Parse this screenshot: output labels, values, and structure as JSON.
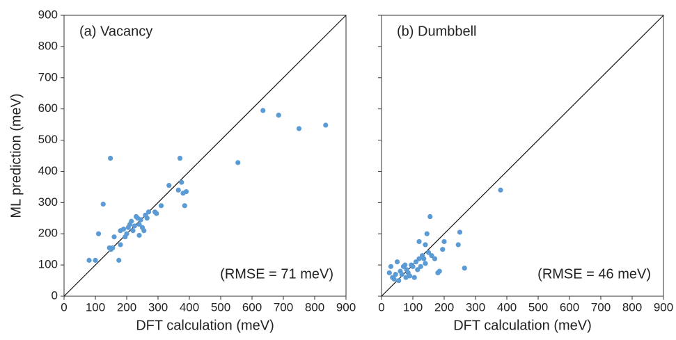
{
  "chart_data": [
    {
      "type": "scatter",
      "ylabel": "ML prediction (meV)",
      "xlabel": "DFT calculation (meV)",
      "annotations": [
        "(a) Vacancy",
        "(RMSE = 71 meV)"
      ],
      "color": "#5b9bd5",
      "xlim": [
        0,
        900
      ],
      "ylim": [
        0,
        900
      ],
      "xticks": [
        0,
        100,
        200,
        300,
        400,
        500,
        600,
        700,
        800,
        900
      ],
      "yticks": [
        0,
        100,
        200,
        300,
        400,
        500,
        600,
        700,
        800,
        900
      ],
      "x": [
        80,
        100,
        110,
        125,
        145,
        150,
        148,
        155,
        160,
        175,
        180,
        180,
        190,
        195,
        200,
        205,
        210,
        215,
        220,
        225,
        230,
        235,
        240,
        240,
        245,
        250,
        255,
        260,
        265,
        270,
        290,
        295,
        310,
        335,
        365,
        370,
        375,
        380,
        390,
        385,
        555,
        635,
        685,
        750,
        835
      ],
      "y": [
        115,
        115,
        200,
        295,
        155,
        150,
        442,
        155,
        190,
        115,
        165,
        210,
        215,
        190,
        200,
        220,
        230,
        240,
        210,
        225,
        255,
        250,
        230,
        195,
        245,
        220,
        210,
        260,
        250,
        270,
        270,
        265,
        290,
        355,
        340,
        442,
        365,
        330,
        335,
        290,
        428,
        595,
        580,
        537,
        548
      ]
    },
    {
      "type": "scatter",
      "xlabel": "DFT calculation (meV)",
      "annotations": [
        "(b) Dumbbell",
        "(RMSE = 46 meV)"
      ],
      "color": "#5b9bd5",
      "xlim": [
        0,
        900
      ],
      "ylim": [
        0,
        900
      ],
      "xticks": [
        0,
        100,
        200,
        300,
        400,
        500,
        600,
        700,
        800,
        900
      ],
      "yticks": [
        0,
        100,
        200,
        300,
        400,
        500,
        600,
        700,
        800,
        900
      ],
      "x": [
        25,
        30,
        35,
        40,
        45,
        50,
        55,
        60,
        65,
        70,
        75,
        78,
        80,
        85,
        90,
        95,
        100,
        105,
        110,
        115,
        120,
        120,
        125,
        130,
        135,
        140,
        140,
        145,
        150,
        155,
        160,
        170,
        180,
        185,
        195,
        200,
        245,
        250,
        265,
        380
      ],
      "y": [
        75,
        95,
        60,
        55,
        70,
        110,
        50,
        80,
        70,
        95,
        100,
        60,
        85,
        75,
        65,
        100,
        95,
        60,
        110,
        85,
        120,
        175,
        95,
        130,
        120,
        105,
        165,
        200,
        140,
        255,
        130,
        120,
        75,
        80,
        150,
        175,
        165,
        205,
        90,
        340
      ]
    }
  ]
}
